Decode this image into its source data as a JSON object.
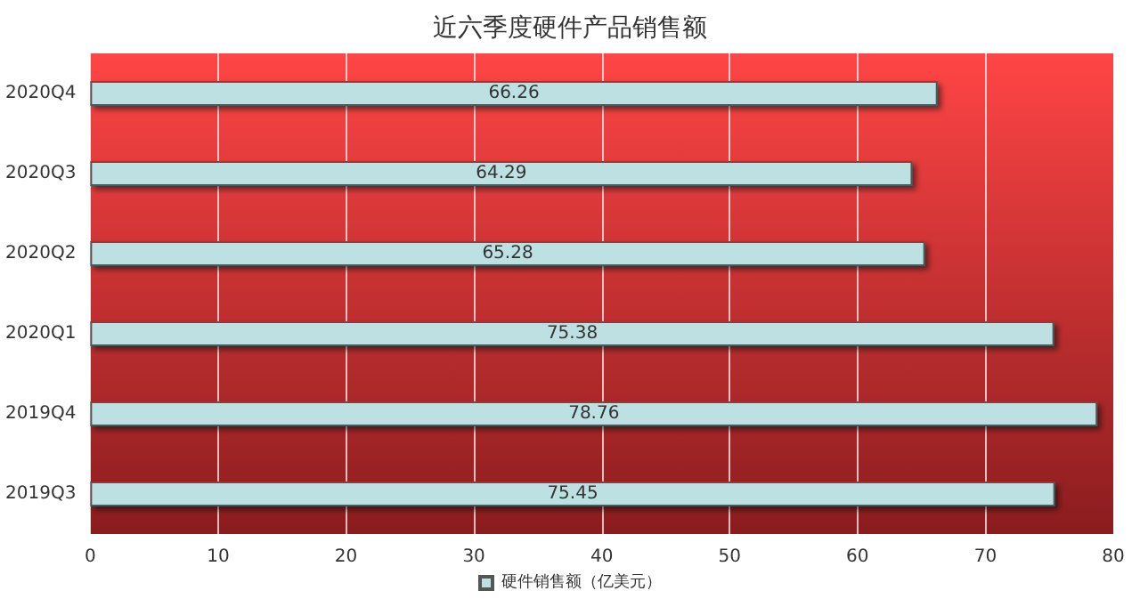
{
  "chart_data": {
    "type": "bar",
    "orientation": "horizontal",
    "title": "近六季度硬件产品销售额",
    "categories": [
      "2020Q4",
      "2020Q3",
      "2020Q2",
      "2020Q1",
      "2019Q4",
      "2019Q3"
    ],
    "series": [
      {
        "name": "硬件销售额（亿美元）",
        "color": "#bde0e3",
        "values": [
          66.26,
          64.29,
          65.28,
          75.38,
          78.76,
          75.45
        ]
      }
    ],
    "xlim": [
      0,
      80
    ],
    "xticks": [
      0,
      10,
      20,
      30,
      40,
      50,
      60,
      70,
      80
    ],
    "grid": "x",
    "legend": "bottom",
    "data_labels": true
  }
}
